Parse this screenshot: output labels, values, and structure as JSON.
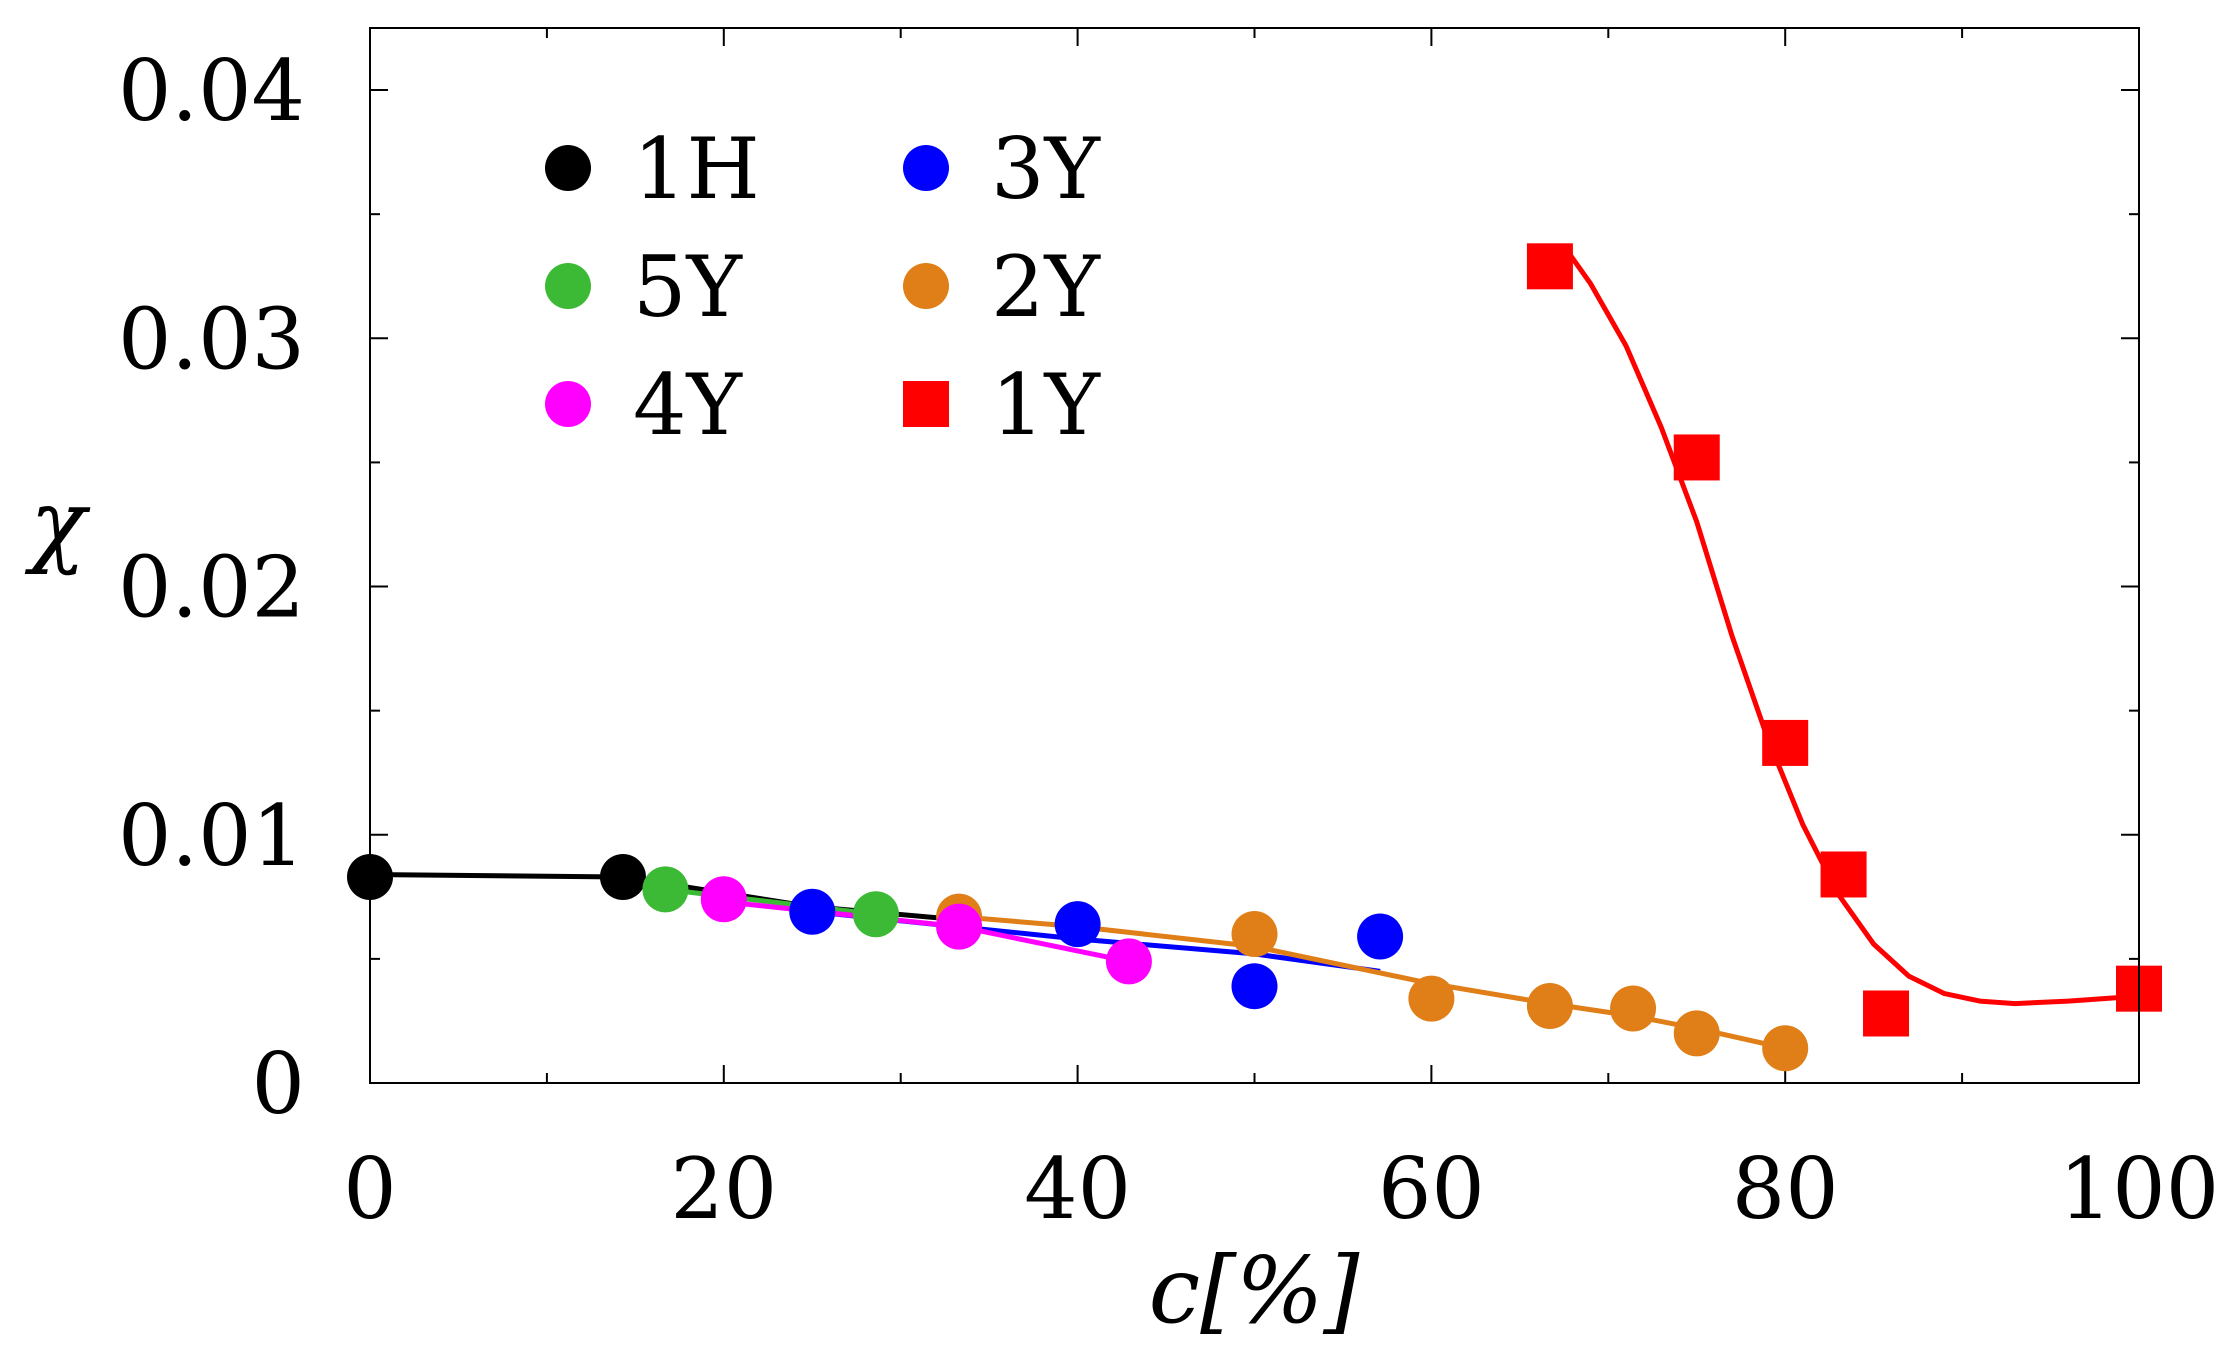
{
  "chart_data": {
    "type": "scatter",
    "title": "",
    "xlabel": "c[%]",
    "ylabel": "χ",
    "xlim": [
      0,
      100
    ],
    "ylim": [
      0,
      0.0425
    ],
    "xticks": [
      0,
      20,
      40,
      60,
      80,
      100
    ],
    "xtick_labels": [
      "0",
      "20",
      "40",
      "60",
      "80",
      "100"
    ],
    "yticks": [
      0,
      0.01,
      0.02,
      0.03,
      0.04
    ],
    "ytick_labels": [
      "0",
      "0.01",
      "0.02",
      "0.03",
      "0.04"
    ],
    "legend_position": "top-left",
    "series": [
      {
        "name": "1H",
        "color": "#000000",
        "marker": "circle",
        "points": [
          [
            0,
            0.0083
          ],
          [
            14.3,
            0.0083
          ]
        ],
        "fit": [
          [
            0,
            0.0084
          ],
          [
            14.3,
            0.0083
          ],
          [
            25,
            0.0071
          ],
          [
            33,
            0.0066
          ]
        ]
      },
      {
        "name": "3Y",
        "color": "#0000ff",
        "marker": "circle",
        "points": [
          [
            25,
            0.0069
          ],
          [
            40,
            0.0064
          ],
          [
            50,
            0.0039
          ],
          [
            57.1,
            0.0059
          ]
        ],
        "fit": [
          [
            25,
            0.0069
          ],
          [
            40,
            0.0058
          ],
          [
            50,
            0.0052
          ],
          [
            57.1,
            0.0045
          ]
        ]
      },
      {
        "name": "5Y",
        "color": "#3cb935",
        "marker": "circle",
        "points": [
          [
            16.7,
            0.0078
          ],
          [
            28.6,
            0.0068
          ]
        ],
        "fit": [
          [
            16.7,
            0.0078
          ],
          [
            28.6,
            0.0068
          ]
        ]
      },
      {
        "name": "2Y",
        "color": "#e07e18",
        "marker": "circle",
        "points": [
          [
            33.3,
            0.0067
          ],
          [
            50,
            0.006
          ],
          [
            60,
            0.0034
          ],
          [
            66.7,
            0.0031
          ],
          [
            71.4,
            0.003
          ],
          [
            75,
            0.002
          ],
          [
            80,
            0.0014
          ]
        ],
        "fit": [
          [
            33.3,
            0.0067
          ],
          [
            40,
            0.0063
          ],
          [
            50,
            0.0055
          ],
          [
            60,
            0.004
          ],
          [
            66.7,
            0.0032
          ],
          [
            71.4,
            0.0027
          ],
          [
            75,
            0.0022
          ],
          [
            80,
            0.0014
          ]
        ]
      },
      {
        "name": "4Y",
        "color": "#ff00ff",
        "marker": "circle",
        "points": [
          [
            20,
            0.0074
          ],
          [
            33.3,
            0.0063
          ],
          [
            42.9,
            0.0049
          ]
        ],
        "fit": [
          [
            20,
            0.0073
          ],
          [
            33.3,
            0.0063
          ],
          [
            42.9,
            0.0049
          ]
        ]
      },
      {
        "name": "1Y",
        "color": "#ff0000",
        "marker": "square",
        "points": [
          [
            66.7,
            0.0329
          ],
          [
            75,
            0.0252
          ],
          [
            80,
            0.0137
          ],
          [
            83.3,
            0.0084
          ],
          [
            85.7,
            0.0028
          ],
          [
            100,
            0.0038
          ]
        ],
        "fit": [
          [
            67.5,
            0.0337
          ],
          [
            69,
            0.0322
          ],
          [
            71,
            0.0297
          ],
          [
            73,
            0.0264
          ],
          [
            75,
            0.0226
          ],
          [
            77,
            0.018
          ],
          [
            79,
            0.0139
          ],
          [
            81,
            0.0104
          ],
          [
            83,
            0.0076
          ],
          [
            85,
            0.0056
          ],
          [
            87,
            0.0043
          ],
          [
            89,
            0.0036
          ],
          [
            91,
            0.0033
          ],
          [
            93,
            0.0032
          ],
          [
            96,
            0.0033
          ],
          [
            100,
            0.0035
          ]
        ]
      }
    ],
    "legend": [
      {
        "name": "1H",
        "color": "#000000",
        "marker": "circle"
      },
      {
        "name": "3Y",
        "color": "#0000ff",
        "marker": "circle"
      },
      {
        "name": "5Y",
        "color": "#3cb935",
        "marker": "circle"
      },
      {
        "name": "2Y",
        "color": "#e07e18",
        "marker": "circle"
      },
      {
        "name": "4Y",
        "color": "#ff00ff",
        "marker": "circle"
      },
      {
        "name": "1Y",
        "color": "#ff0000",
        "marker": "square"
      }
    ]
  }
}
